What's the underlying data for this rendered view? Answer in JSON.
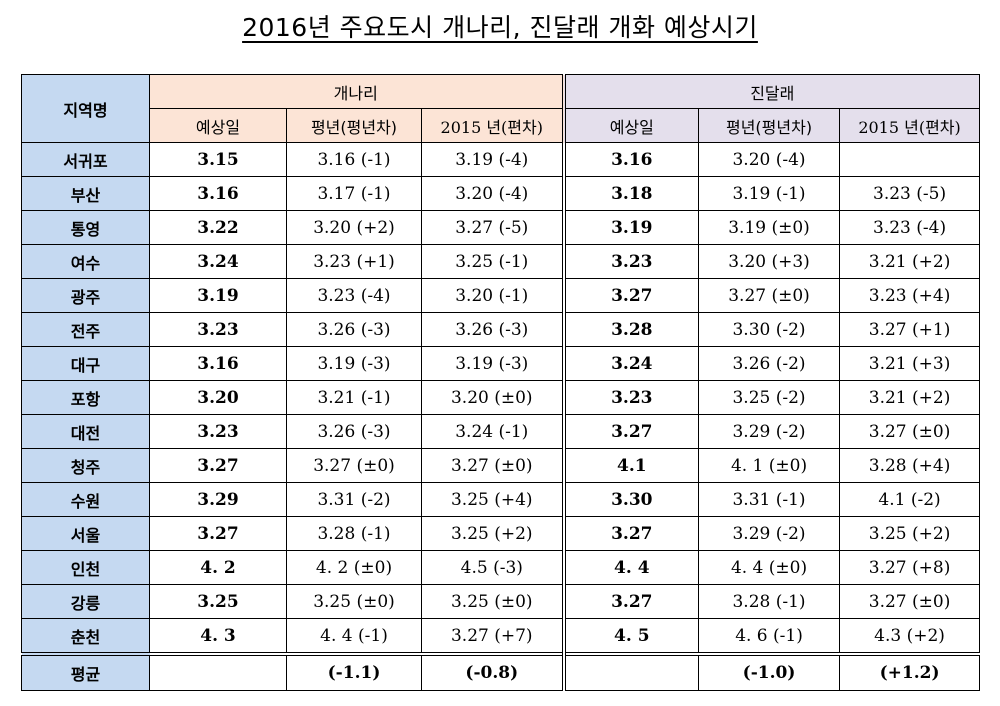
{
  "title": "2016년 주요도시 개나리, 진달래 개화 예상시기",
  "headers": {
    "region": "지역명",
    "forsythia": "개나리",
    "azalea": "진달래",
    "sub": [
      "예상일",
      "평년(평년차)",
      "2015 년(편차)"
    ]
  },
  "rows": [
    {
      "region": "서귀포",
      "g_pred": "3.15",
      "g_normal": "3.16 (-1)",
      "g_2015": "3.19 (-4)",
      "j_pred": "3.16",
      "j_normal": "3.20 (-4)",
      "j_2015": ""
    },
    {
      "region": "부산",
      "g_pred": "3.16",
      "g_normal": "3.17 (-1)",
      "g_2015": "3.20 (-4)",
      "j_pred": "3.18",
      "j_normal": "3.19 (-1)",
      "j_2015": "3.23 (-5)"
    },
    {
      "region": "통영",
      "g_pred": "3.22",
      "g_normal": "3.20 (+2)",
      "g_2015": "3.27 (-5)",
      "j_pred": "3.19",
      "j_normal": "3.19 (±0)",
      "j_2015": "3.23 (-4)"
    },
    {
      "region": "여수",
      "g_pred": "3.24",
      "g_normal": "3.23 (+1)",
      "g_2015": "3.25 (-1)",
      "j_pred": "3.23",
      "j_normal": "3.20 (+3)",
      "j_2015": "3.21 (+2)"
    },
    {
      "region": "광주",
      "g_pred": "3.19",
      "g_normal": "3.23 (-4)",
      "g_2015": "3.20 (-1)",
      "j_pred": "3.27",
      "j_normal": "3.27 (±0)",
      "j_2015": "3.23 (+4)"
    },
    {
      "region": "전주",
      "g_pred": "3.23",
      "g_normal": "3.26 (-3)",
      "g_2015": "3.26 (-3)",
      "j_pred": "3.28",
      "j_normal": "3.30 (-2)",
      "j_2015": "3.27 (+1)"
    },
    {
      "region": "대구",
      "g_pred": "3.16",
      "g_normal": "3.19 (-3)",
      "g_2015": "3.19 (-3)",
      "j_pred": "3.24",
      "j_normal": "3.26 (-2)",
      "j_2015": "3.21 (+3)"
    },
    {
      "region": "포항",
      "g_pred": "3.20",
      "g_normal": "3.21 (-1)",
      "g_2015": "3.20 (±0)",
      "j_pred": "3.23",
      "j_normal": "3.25 (-2)",
      "j_2015": "3.21 (+2)"
    },
    {
      "region": "대전",
      "g_pred": "3.23",
      "g_normal": "3.26 (-3)",
      "g_2015": "3.24 (-1)",
      "j_pred": "3.27",
      "j_normal": "3.29 (-2)",
      "j_2015": "3.27 (±0)"
    },
    {
      "region": "청주",
      "g_pred": "3.27",
      "g_normal": "3.27 (±0)",
      "g_2015": "3.27 (±0)",
      "j_pred": "4.1",
      "j_normal": "4. 1 (±0)",
      "j_2015": "3.28 (+4)"
    },
    {
      "region": "수원",
      "g_pred": "3.29",
      "g_normal": "3.31 (-2)",
      "g_2015": "3.25 (+4)",
      "j_pred": "3.30",
      "j_normal": "3.31 (-1)",
      "j_2015": "4.1 (-2)"
    },
    {
      "region": "서울",
      "g_pred": "3.27",
      "g_normal": "3.28 (-1)",
      "g_2015": "3.25 (+2)",
      "j_pred": "3.27",
      "j_normal": "3.29 (-2)",
      "j_2015": "3.25 (+2)"
    },
    {
      "region": "인천",
      "g_pred": "4. 2",
      "g_normal": "4. 2 (±0)",
      "g_2015": "4.5 (-3)",
      "j_pred": "4. 4",
      "j_normal": "4. 4 (±0)",
      "j_2015": "3.27 (+8)"
    },
    {
      "region": "강릉",
      "g_pred": "3.25",
      "g_normal": "3.25 (±0)",
      "g_2015": "3.25 (±0)",
      "j_pred": "3.27",
      "j_normal": "3.28 (-1)",
      "j_2015": "3.27 (±0)"
    },
    {
      "region": "춘천",
      "g_pred": "4. 3",
      "g_normal": "4. 4 (-1)",
      "g_2015": "3.27 (+7)",
      "j_pred": "4. 5",
      "j_normal": "4. 6 (-1)",
      "j_2015": "4.3 (+2)"
    }
  ],
  "average": {
    "label": "평균",
    "g_pred": "",
    "g_normal": "(-1.1)",
    "g_2015": "(-0.8)",
    "j_pred": "",
    "j_normal": "(-1.0)",
    "j_2015": "(+1.2)"
  },
  "colors": {
    "region_header": "#c5d9f1",
    "forsythia_header": "#fce4d6",
    "azalea_header": "#e4dfec"
  }
}
